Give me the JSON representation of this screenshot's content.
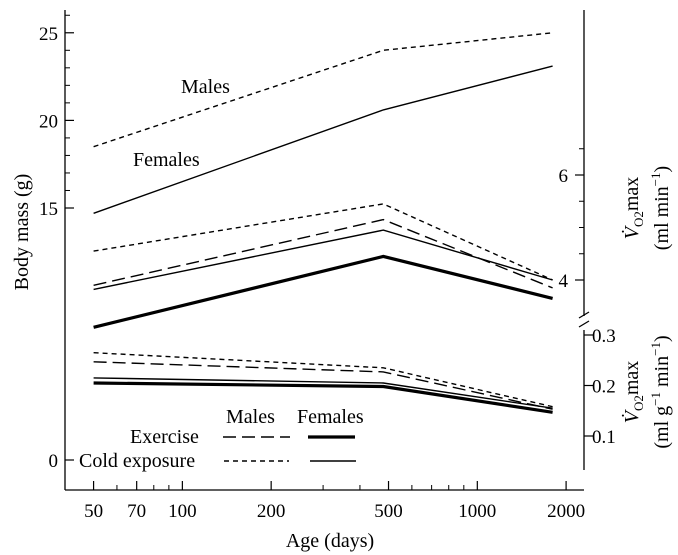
{
  "chart_data": {
    "type": "line",
    "x_scale": "log",
    "x_axis": {
      "label": "Age (days)",
      "ticks": [
        50,
        70,
        100,
        200,
        500,
        1000,
        2000
      ],
      "range": [
        40,
        2300
      ]
    },
    "y_left": {
      "label": "Body mass (g)",
      "ticks": [
        0,
        15,
        20,
        25
      ],
      "range": [
        0,
        26.3
      ],
      "break_from": 0,
      "break_to": 15
    },
    "y_right_upper": {
      "label_main": "V̇",
      "label_sub": "O2",
      "label_tail": "max",
      "label_units": "(ml min",
      "label_units_sup": "−1",
      "label_units_close": ")",
      "ticks": [
        4,
        6
      ],
      "range": [
        3.6,
        7.0
      ]
    },
    "y_right_lower": {
      "label_main": "V̇",
      "label_sub": "O2",
      "label_tail": "max",
      "label_units": "(ml g",
      "label_units_sup": "−1",
      "label_units_mid": " min",
      "label_units_sup2": "−1",
      "label_units_close": ")",
      "ticks": [
        0.1,
        0.2,
        0.3
      ],
      "range": [
        0.05,
        0.32
      ]
    },
    "x": [
      50,
      480,
      1800
    ],
    "series": [
      {
        "group": "body-mass",
        "sex": "males",
        "treatment": "cold exposure",
        "axis": "left",
        "values": [
          18.5,
          24,
          25
        ],
        "style": "short-dash",
        "width": 1.4
      },
      {
        "group": "body-mass",
        "sex": "females",
        "treatment": "cold exposure",
        "axis": "left",
        "values": [
          14.7,
          20.6,
          23.1
        ],
        "style": "solid",
        "width": 1.4
      },
      {
        "group": "vo2max-whole",
        "sex": "males",
        "treatment": "cold exposure",
        "axis": "right_upper",
        "values": [
          4.55,
          5.45,
          4.0
        ],
        "style": "short-dash",
        "width": 1.4
      },
      {
        "group": "vo2max-whole",
        "sex": "males",
        "treatment": "exercise",
        "axis": "right_upper",
        "values": [
          3.9,
          5.15,
          3.85
        ],
        "style": "long-dash",
        "width": 1.4
      },
      {
        "group": "vo2max-whole",
        "sex": "females",
        "treatment": "cold exposure",
        "axis": "right_upper",
        "values": [
          3.82,
          4.95,
          4.0
        ],
        "style": "solid",
        "width": 1.4
      },
      {
        "group": "vo2max-whole",
        "sex": "females",
        "treatment": "exercise",
        "axis": "right_upper",
        "values": [
          3.1,
          4.45,
          3.65
        ],
        "style": "solid",
        "width": 3.2
      },
      {
        "group": "vo2max-mass",
        "sex": "males",
        "treatment": "cold exposure",
        "axis": "right_lower",
        "values": [
          0.265,
          0.235,
          0.158
        ],
        "style": "short-dash",
        "width": 1.4
      },
      {
        "group": "vo2max-mass",
        "sex": "males",
        "treatment": "exercise",
        "axis": "right_lower",
        "values": [
          0.247,
          0.227,
          0.153
        ],
        "style": "long-dash",
        "width": 1.4
      },
      {
        "group": "vo2max-mass",
        "sex": "females",
        "treatment": "cold exposure",
        "axis": "right_lower",
        "values": [
          0.215,
          0.205,
          0.155
        ],
        "style": "solid",
        "width": 1.4
      },
      {
        "group": "vo2max-mass",
        "sex": "females",
        "treatment": "exercise",
        "axis": "right_lower",
        "values": [
          0.205,
          0.198,
          0.147
        ],
        "style": "solid",
        "width": 3.2
      }
    ],
    "annotations": {
      "males": "Males",
      "females": "Females"
    },
    "legend": {
      "position": "bottom-left",
      "header_males": "Males",
      "header_females": "Females",
      "row_exercise": "Exercise",
      "row_cold": "Cold exposure"
    }
  }
}
